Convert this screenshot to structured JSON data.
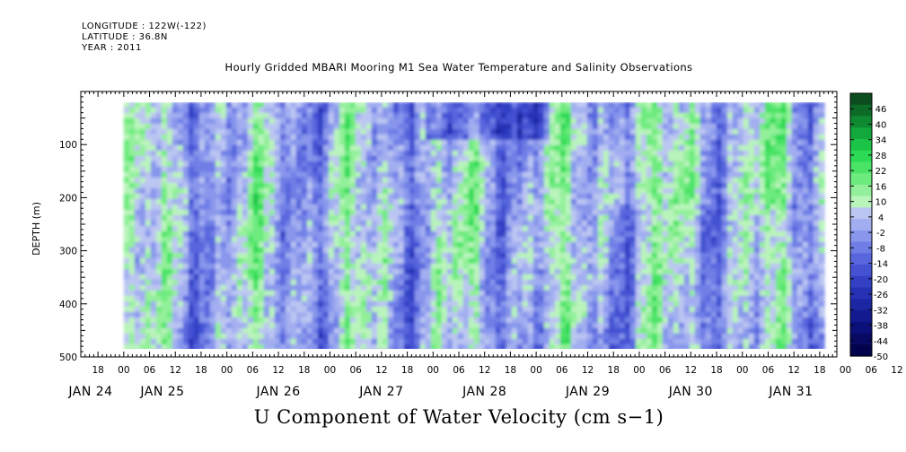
{
  "header": {
    "longitude": "LONGITUDE : 122W(-122)",
    "latitude": "LATITUDE : 36.8N",
    "year": "YEAR : 2011"
  },
  "chart_data": {
    "type": "heatmap",
    "title": "Hourly Gridded MBARI Mooring M1 Sea Water Temperature and Salinity Observations",
    "footer_title": "U Component of Water Velocity (cm s−1)",
    "ylabel": "DEPTH (m)",
    "yticks": [
      100,
      200,
      300,
      400,
      500
    ],
    "ylim": [
      500,
      0
    ],
    "data_depth_range": [
      20,
      488
    ],
    "x_start": "JAN 24 2011 14:00",
    "x_end": "JAN 31 2011 22:00",
    "data_time_range": [
      "JAN 25 00:00",
      "JAN 31 18:00"
    ],
    "hour_ticks": [
      "18",
      "00",
      "06",
      "12",
      "18",
      "00",
      "06",
      "12",
      "18",
      "00",
      "06",
      "12",
      "18",
      "00",
      "06",
      "12",
      "18",
      "00",
      "06",
      "12",
      "18",
      "00",
      "06",
      "12",
      "18",
      "00",
      "06",
      "12",
      "18",
      "00",
      "06",
      "12",
      "18"
    ],
    "day_labels": [
      "JAN 24",
      "JAN 25",
      "JAN 26",
      "JAN 27",
      "JAN 28",
      "JAN 29",
      "JAN 30",
      "JAN 31"
    ],
    "colorbar": {
      "levels": [
        "46",
        "40",
        "34",
        "28",
        "22",
        "16",
        "10",
        "4",
        "-2",
        "-8",
        "-14",
        "-20",
        "-26",
        "-32",
        "-38",
        "-44",
        "-50"
      ],
      "min": -50,
      "max": 52,
      "step": 3,
      "colors_high_to_low": [
        "#0b4d1e",
        "#0d6b28",
        "#0f8a32",
        "#12a83c",
        "#1bc447",
        "#2dda55",
        "#4ae366",
        "#6deb7e",
        "#93f09a",
        "#b9f4bb",
        "#bcc6f2",
        "#a2aef0",
        "#8896ec",
        "#6f7ee6",
        "#5866dd",
        "#4351d2",
        "#3340c4",
        "#2632b5",
        "#1c26a3",
        "#131a8f",
        "#0c107a",
        "#070963",
        "#03034d"
      ]
    }
  }
}
